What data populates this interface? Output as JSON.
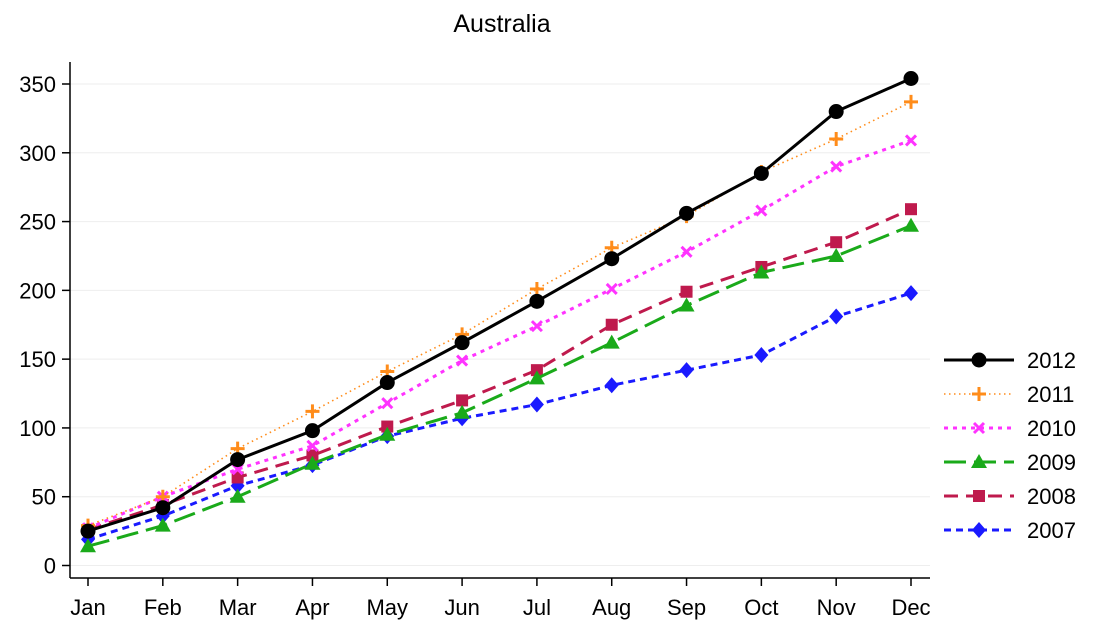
{
  "chart_data": {
    "type": "line",
    "title": "Australia",
    "xlabel": "",
    "ylabel": "",
    "categories": [
      "Jan",
      "Feb",
      "Mar",
      "Apr",
      "May",
      "Jun",
      "Jul",
      "Aug",
      "Sep",
      "Oct",
      "Nov",
      "Dec"
    ],
    "ylim": [
      0,
      360
    ],
    "yticks": [
      0,
      50,
      100,
      150,
      200,
      250,
      300,
      350
    ],
    "grid": true,
    "legend_position": "right",
    "series": [
      {
        "name": "2012",
        "color": "#000000",
        "marker": "circle",
        "dash": "solid",
        "values": [
          25,
          42,
          77,
          98,
          133,
          162,
          192,
          223,
          256,
          285,
          330,
          354
        ]
      },
      {
        "name": "2011",
        "color": "#ff8c1a",
        "marker": "plus",
        "dash": "dot",
        "values": [
          29,
          50,
          85,
          112,
          141,
          168,
          201,
          231,
          254,
          286,
          310,
          337
        ]
      },
      {
        "name": "2010",
        "color": "#ff33ff",
        "marker": "x",
        "dash": "dash-short",
        "values": [
          27,
          50,
          70,
          87,
          118,
          149,
          174,
          201,
          228,
          258,
          290,
          309
        ]
      },
      {
        "name": "2009",
        "color": "#1aaa1a",
        "marker": "triangle",
        "dash": "dash-long",
        "values": [
          14,
          29,
          50,
          74,
          95,
          111,
          136,
          162,
          189,
          213,
          225,
          247
        ]
      },
      {
        "name": "2008",
        "color": "#bf1a4d",
        "marker": "square",
        "dash": "dash",
        "values": [
          26,
          44,
          64,
          80,
          101,
          120,
          142,
          175,
          199,
          217,
          235,
          259
        ]
      },
      {
        "name": "2007",
        "color": "#1a1aff",
        "marker": "diamond",
        "dash": "dash-dot",
        "values": [
          19,
          36,
          58,
          73,
          94,
          107,
          117,
          131,
          142,
          153,
          181,
          198
        ]
      }
    ]
  }
}
